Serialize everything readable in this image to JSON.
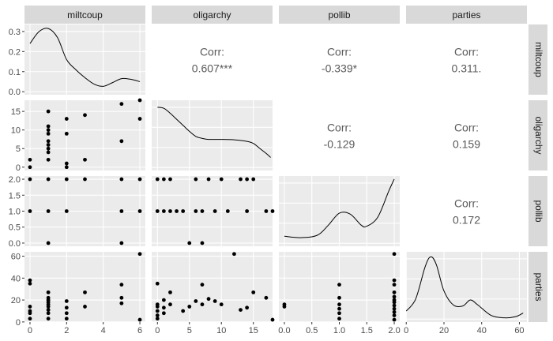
{
  "colors": {
    "panel_bg": "#ebebeb",
    "grid_major": "#ffffff",
    "strip_bg": "#d9d9d9",
    "points": "#000000",
    "density_line": "#000000",
    "corr_text": "#595959"
  },
  "chart_data": {
    "type": "scatter",
    "variables": [
      "miltcoup",
      "oligarchy",
      "pollib",
      "parties"
    ],
    "strip_labels": {
      "top": [
        "miltcoup",
        "oligarchy",
        "pollib",
        "parties"
      ],
      "right": [
        "miltcoup",
        "oligarchy",
        "pollib",
        "parties"
      ]
    },
    "ranges": {
      "miltcoup": [
        -0.3,
        6.3
      ],
      "oligarchy": [
        -0.9,
        18.0
      ],
      "pollib": [
        -0.1,
        2.1
      ],
      "parties": [
        -0.1,
        64.0
      ]
    },
    "x_ticks": {
      "miltcoup": [
        "0",
        "2",
        "4",
        "6"
      ],
      "oligarchy": [
        "0",
        "5",
        "10",
        "15"
      ],
      "pollib": [
        "0.0",
        "0.5",
        "1.0",
        "1.5",
        "2.0"
      ],
      "parties": [
        "0",
        "20",
        "40",
        "60"
      ]
    },
    "y_ticks": {
      "miltcoup": [
        "0.0",
        "0.1",
        "0.2",
        "0.3"
      ],
      "oligarchy": [
        "0",
        "5",
        "10",
        "15"
      ],
      "pollib": [
        "0.0",
        "0.5",
        "1.0",
        "1.5",
        "2.0"
      ],
      "parties": [
        "0",
        "20",
        "40",
        "60"
      ]
    },
    "density_axis": {
      "ylim": [
        -0.015,
        0.335
      ],
      "ticks": [
        "0.0",
        "0.1",
        "0.2",
        "0.3"
      ]
    },
    "correlations": [
      {
        "row": 0,
        "col": 1,
        "label": "Corr:",
        "value": "0.607***"
      },
      {
        "row": 0,
        "col": 2,
        "label": "Corr:",
        "value": "-0.339*"
      },
      {
        "row": 0,
        "col": 3,
        "label": "Corr:",
        "value": "0.311."
      },
      {
        "row": 1,
        "col": 2,
        "label": "Corr:",
        "value": "-0.129"
      },
      {
        "row": 1,
        "col": 3,
        "label": "Corr:",
        "value": "0.159"
      },
      {
        "row": 2,
        "col": 3,
        "label": "Corr:",
        "value": "0.172"
      }
    ],
    "densities": {
      "miltcoup": [
        [
          0,
          0.24
        ],
        [
          0.5,
          0.3
        ],
        [
          1,
          0.315
        ],
        [
          1.5,
          0.27
        ],
        [
          2,
          0.16
        ],
        [
          2.5,
          0.11
        ],
        [
          3,
          0.07
        ],
        [
          3.5,
          0.038
        ],
        [
          4,
          0.027
        ],
        [
          4.5,
          0.045
        ],
        [
          5,
          0.065
        ],
        [
          5.5,
          0.062
        ],
        [
          6,
          0.05
        ]
      ],
      "oligarchy": [
        [
          0,
          0.3
        ],
        [
          1,
          0.295
        ],
        [
          2,
          0.27
        ],
        [
          3,
          0.24
        ],
        [
          4,
          0.21
        ],
        [
          5,
          0.18
        ],
        [
          6,
          0.155
        ],
        [
          7,
          0.145
        ],
        [
          8,
          0.14
        ],
        [
          10,
          0.14
        ],
        [
          12,
          0.138
        ],
        [
          14,
          0.13
        ],
        [
          15,
          0.12
        ],
        [
          16,
          0.095
        ],
        [
          17,
          0.07
        ],
        [
          17.7,
          0.05
        ]
      ],
      "pollib": [
        [
          0,
          0.035
        ],
        [
          0.3,
          0.028
        ],
        [
          0.6,
          0.04
        ],
        [
          0.8,
          0.09
        ],
        [
          1.0,
          0.15
        ],
        [
          1.2,
          0.145
        ],
        [
          1.4,
          0.09
        ],
        [
          1.5,
          0.085
        ],
        [
          1.7,
          0.13
        ],
        [
          1.9,
          0.26
        ],
        [
          2.0,
          0.32
        ]
      ],
      "parties": [
        [
          0,
          0.04
        ],
        [
          5,
          0.1
        ],
        [
          10,
          0.26
        ],
        [
          13,
          0.31
        ],
        [
          16,
          0.27
        ],
        [
          20,
          0.14
        ],
        [
          25,
          0.07
        ],
        [
          30,
          0.065
        ],
        [
          34,
          0.095
        ],
        [
          38,
          0.07
        ],
        [
          45,
          0.018
        ],
        [
          52,
          0.006
        ],
        [
          58,
          0.012
        ],
        [
          62,
          0.03
        ]
      ]
    },
    "scatter": {
      "oligarchy_vs_miltcoup": [
        [
          0,
          0
        ],
        [
          0,
          2
        ],
        [
          1,
          2
        ],
        [
          1,
          4
        ],
        [
          1,
          5
        ],
        [
          1,
          6
        ],
        [
          1,
          7
        ],
        [
          1,
          9
        ],
        [
          1,
          10
        ],
        [
          1,
          11
        ],
        [
          1,
          15
        ],
        [
          2,
          0
        ],
        [
          2,
          1
        ],
        [
          2,
          9
        ],
        [
          2,
          13
        ],
        [
          3,
          2
        ],
        [
          3,
          14
        ],
        [
          5,
          7
        ],
        [
          5,
          17
        ],
        [
          6,
          13
        ],
        [
          6,
          18
        ]
      ],
      "pollib_vs_miltcoup": [
        [
          0,
          1
        ],
        [
          0,
          2
        ],
        [
          1,
          0
        ],
        [
          1,
          1
        ],
        [
          1,
          2
        ],
        [
          2,
          1
        ],
        [
          2,
          2
        ],
        [
          3,
          2
        ],
        [
          5,
          0
        ],
        [
          5,
          1
        ],
        [
          5,
          2
        ],
        [
          6,
          1
        ],
        [
          6,
          2
        ]
      ],
      "pollib_vs_oligarchy": [
        [
          0,
          1
        ],
        [
          0,
          2
        ],
        [
          1,
          1
        ],
        [
          1,
          2
        ],
        [
          2,
          1
        ],
        [
          2,
          2
        ],
        [
          3,
          1
        ],
        [
          4,
          1
        ],
        [
          5,
          0
        ],
        [
          6,
          1
        ],
        [
          6,
          2
        ],
        [
          7,
          0
        ],
        [
          7,
          1
        ],
        [
          8,
          2
        ],
        [
          9,
          1
        ],
        [
          10,
          2
        ],
        [
          11,
          1
        ],
        [
          13,
          2
        ],
        [
          14,
          1
        ],
        [
          14,
          2
        ],
        [
          15,
          2
        ],
        [
          17,
          1
        ],
        [
          18,
          1
        ]
      ],
      "parties_vs_miltcoup": [
        [
          0,
          3
        ],
        [
          0,
          8
        ],
        [
          0,
          10
        ],
        [
          0,
          14
        ],
        [
          0,
          35
        ],
        [
          0,
          38
        ],
        [
          1,
          3
        ],
        [
          1,
          8
        ],
        [
          1,
          11
        ],
        [
          1,
          14
        ],
        [
          1,
          16
        ],
        [
          1,
          18
        ],
        [
          1,
          20
        ],
        [
          1,
          22
        ],
        [
          1,
          27
        ],
        [
          2,
          3
        ],
        [
          2,
          8
        ],
        [
          2,
          13
        ],
        [
          2,
          19
        ],
        [
          3,
          14
        ],
        [
          3,
          27
        ],
        [
          5,
          17
        ],
        [
          5,
          22
        ],
        [
          5,
          34
        ],
        [
          6,
          2
        ],
        [
          6,
          62
        ]
      ],
      "parties_vs_oligarchy": [
        [
          0,
          3
        ],
        [
          0,
          6
        ],
        [
          0,
          10
        ],
        [
          0,
          14
        ],
        [
          0,
          16
        ],
        [
          0,
          35
        ],
        [
          1,
          8
        ],
        [
          1,
          13
        ],
        [
          1,
          20
        ],
        [
          2,
          16
        ],
        [
          2,
          27
        ],
        [
          4,
          10
        ],
        [
          5,
          14
        ],
        [
          6,
          19
        ],
        [
          7,
          16
        ],
        [
          7,
          34
        ],
        [
          8,
          21
        ],
        [
          9,
          19
        ],
        [
          10,
          16
        ],
        [
          12,
          62
        ],
        [
          13,
          11
        ],
        [
          14,
          13
        ],
        [
          15,
          27
        ],
        [
          17,
          22
        ],
        [
          18,
          2
        ]
      ],
      "parties_vs_pollib": [
        [
          0,
          14
        ],
        [
          0,
          16
        ],
        [
          1,
          3
        ],
        [
          1,
          8
        ],
        [
          1,
          12
        ],
        [
          1,
          16
        ],
        [
          1,
          22
        ],
        [
          1,
          34
        ],
        [
          2,
          2
        ],
        [
          2,
          6
        ],
        [
          2,
          9
        ],
        [
          2,
          12
        ],
        [
          2,
          15
        ],
        [
          2,
          18
        ],
        [
          2,
          20
        ],
        [
          2,
          23
        ],
        [
          2,
          27
        ],
        [
          2,
          34
        ],
        [
          2,
          38
        ],
        [
          2,
          62
        ]
      ]
    }
  }
}
